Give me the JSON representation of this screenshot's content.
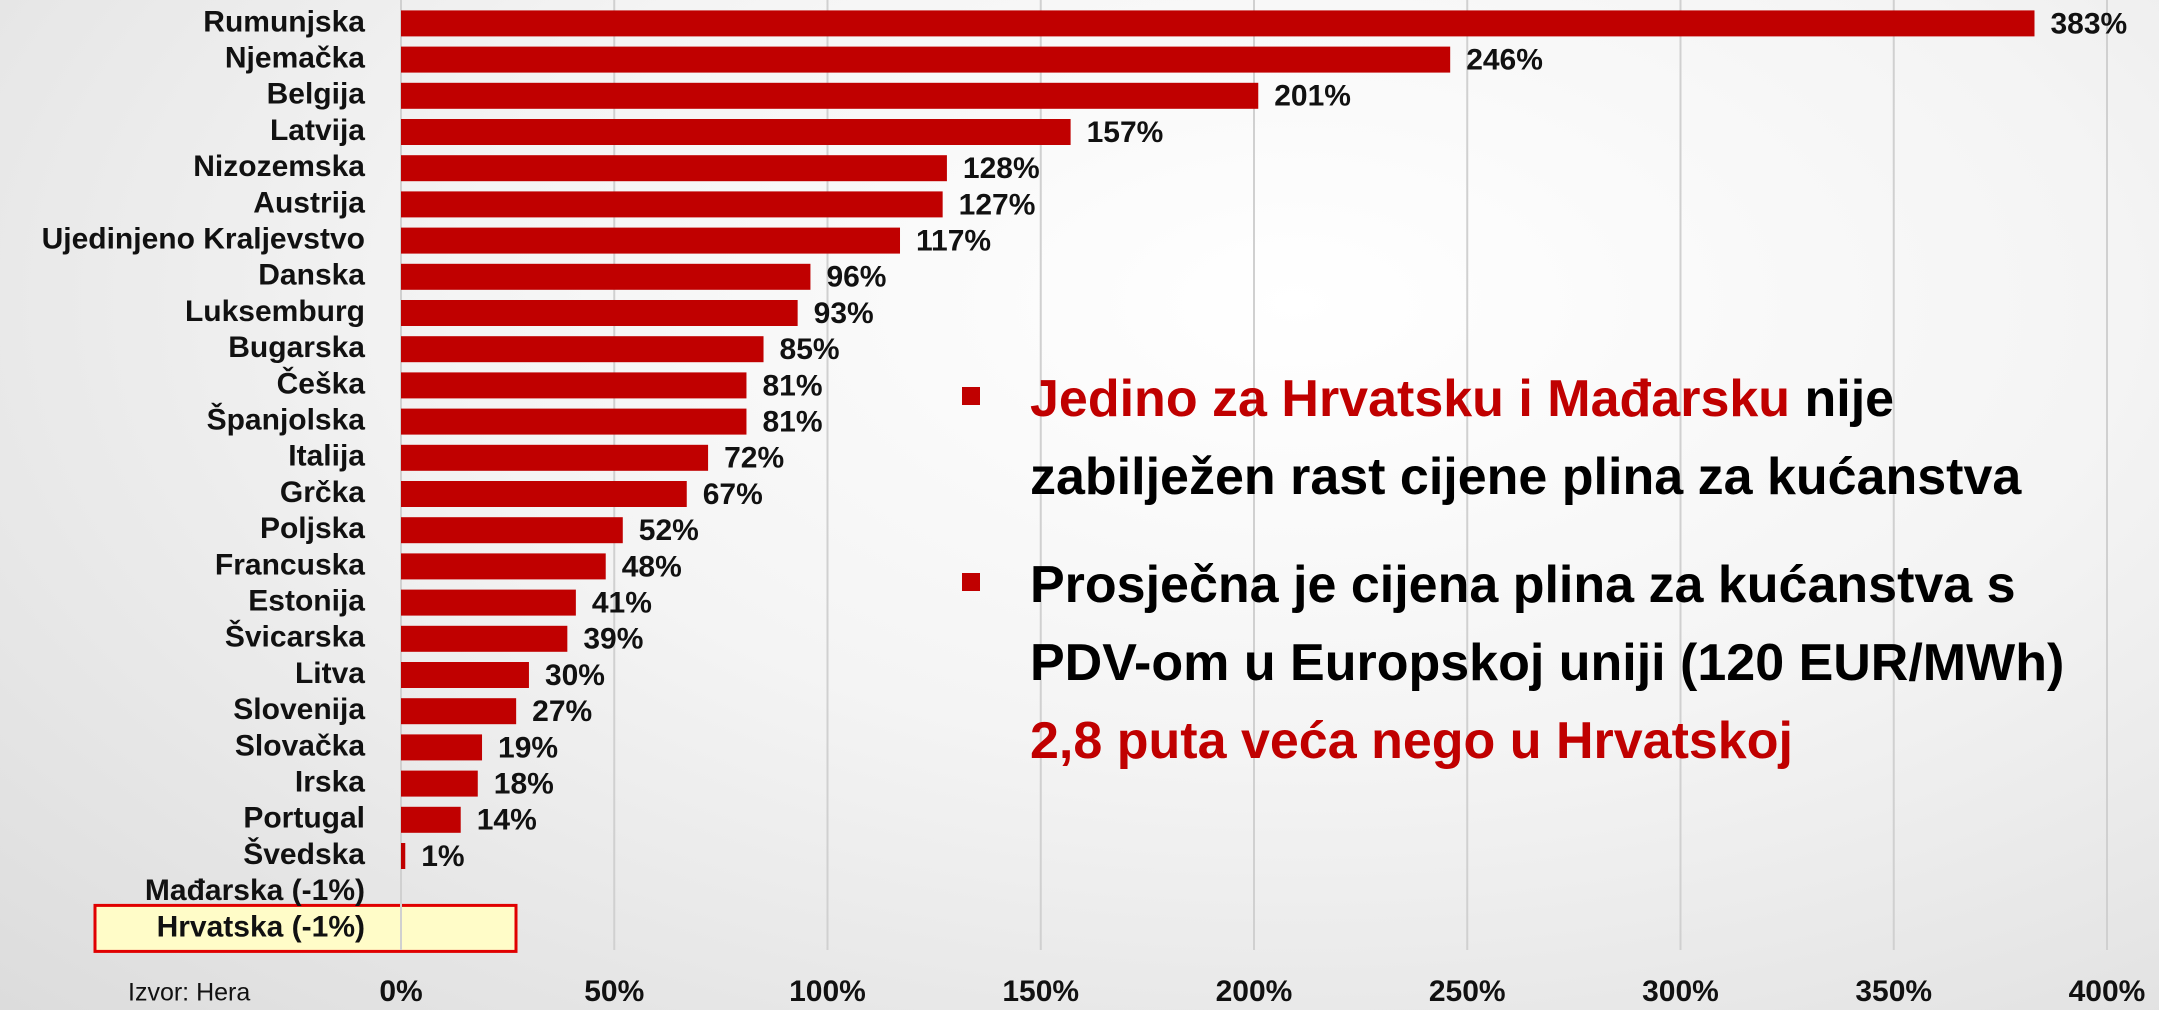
{
  "chart_data": {
    "type": "hbar",
    "categories": [
      "Rumunjska",
      "Njemačka",
      "Belgija",
      "Latvija",
      "Nizozemska",
      "Austrija",
      "Ujedinjeno Kraljevstvo",
      "Danska",
      "Luksemburg",
      "Bugarska",
      "Češka",
      "Španjolska",
      "Italija",
      "Grčka",
      "Poljska",
      "Francuska",
      "Estonija",
      "Švicarska",
      "Litva",
      "Slovenija",
      "Slovačka",
      "Irska",
      "Portugal",
      "Švedska",
      "Mađarska (-1%)",
      "Hrvatska (-1%)"
    ],
    "values": [
      383,
      246,
      201,
      157,
      128,
      127,
      117,
      96,
      93,
      85,
      81,
      81,
      72,
      67,
      52,
      48,
      41,
      39,
      30,
      27,
      19,
      18,
      14,
      1,
      null,
      null
    ],
    "value_labels": [
      "383%",
      "246%",
      "201%",
      "157%",
      "128%",
      "127%",
      "117%",
      "96%",
      "93%",
      "85%",
      "81%",
      "81%",
      "72%",
      "67%",
      "52%",
      "48%",
      "41%",
      "39%",
      "30%",
      "27%",
      "19%",
      "18%",
      "14%",
      "1%",
      null,
      null
    ],
    "color": "#c00000",
    "highlight": "Hrvatska (-1%)",
    "xlim": [
      0,
      400
    ],
    "xticks": [
      {
        "value": 0,
        "label": "0%"
      },
      {
        "value": 50,
        "label": "50%"
      },
      {
        "value": 100,
        "label": "100%"
      },
      {
        "value": 150,
        "label": "150%"
      },
      {
        "value": 200,
        "label": "200%"
      },
      {
        "value": 250,
        "label": "250%"
      },
      {
        "value": 300,
        "label": "300%"
      },
      {
        "value": 350,
        "label": "350%"
      },
      {
        "value": 400,
        "label": "400%"
      }
    ],
    "grid": true,
    "source": "Izvor: Hera",
    "annotations": [
      [
        {
          "text": "Jedino za Hrvatsku i Mađarsku",
          "color": "#c00000"
        },
        {
          "text": "nije zabilježen rast cijene plina za kućanstva",
          "color": "#000000"
        }
      ],
      [
        {
          "text": "Prosječna je cijena plina za kućanstva s PDV-om u Europskoj uniji (120 EUR/MWh)",
          "color": "#000000"
        },
        {
          "text": "2,8 puta veća nego u Hrvatskoj",
          "color": "#c00000"
        }
      ]
    ]
  }
}
